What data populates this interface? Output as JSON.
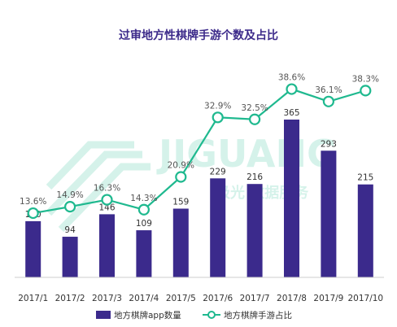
{
  "chart_data": {
    "type": "bar",
    "title": "过审地方性棋牌手游个数及占比",
    "categories": [
      "2017/1",
      "2017/2",
      "2017/3",
      "2017/4",
      "2017/5",
      "2017/6",
      "2017/7",
      "2017/8",
      "2017/9",
      "2017/10"
    ],
    "series": [
      {
        "name": "地方棋牌app数量",
        "type": "bar",
        "color": "#3b2a8c",
        "values": [
          130,
          94,
          146,
          109,
          159,
          229,
          216,
          365,
          293,
          215
        ]
      },
      {
        "name": "地方棋牌手游占比",
        "type": "line",
        "color": "#1fb98f",
        "values": [
          13.6,
          14.9,
          16.3,
          14.3,
          20.9,
          32.9,
          32.5,
          38.6,
          36.1,
          38.3
        ],
        "labels": [
          "13.6%",
          "14.9%",
          "16.3%",
          "14.3%",
          "20.9%",
          "32.9%",
          "32.5%",
          "38.6%",
          "36.1%",
          "38.3%"
        ]
      }
    ],
    "grid": false,
    "legend": "bottom"
  },
  "watermark": {
    "main": "JIGUANG",
    "sub": "极光 数据服务"
  }
}
